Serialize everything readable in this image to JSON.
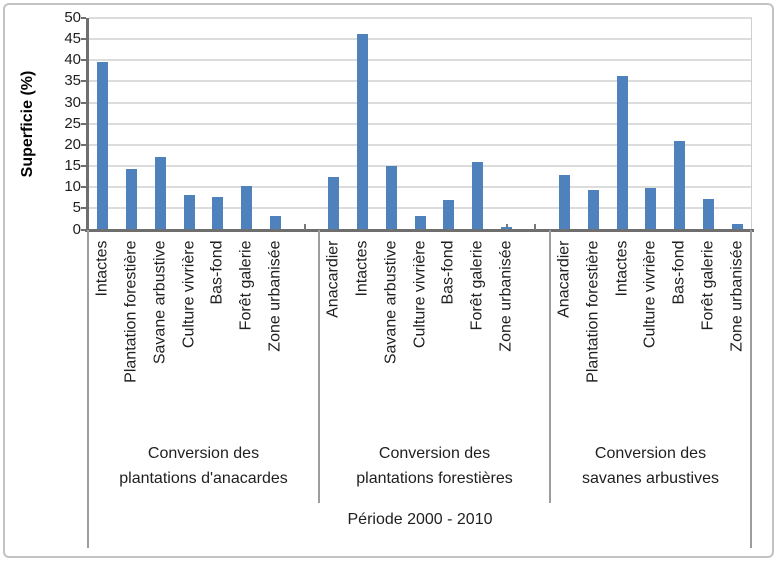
{
  "chart_data": {
    "type": "bar",
    "title": "",
    "ylabel": "Superficie (%)",
    "xlabel": "Période 2000 - 2010",
    "ylim": [
      0,
      50
    ],
    "yticks": [
      0,
      5,
      10,
      15,
      20,
      25,
      30,
      35,
      40,
      45,
      50
    ],
    "grid": true,
    "legend": false,
    "bar_color": "#4F81BD",
    "groups": [
      {
        "label": "Conversion des plantations d'anacardes",
        "label_line1": "Conversion des",
        "label_line2": "plantations d'anacardes",
        "categories": [
          "Intactes",
          "Plantation forestière",
          "Savane arbustive",
          "Culture vivrière",
          "Bas-fond",
          "Forêt galerie",
          "Zone urbanisée"
        ],
        "values": [
          39.6,
          14.3,
          17.2,
          8.1,
          7.6,
          10.2,
          3.1
        ]
      },
      {
        "label": "Conversion des plantations forestières",
        "label_line1": "Conversion des",
        "label_line2": "plantations forestières",
        "categories": [
          "Anacardier",
          "Intactes",
          "Savane arbustive",
          "Culture vivrière",
          "Bas-fond",
          "Forêt galerie",
          "Zone urbanisée"
        ],
        "values": [
          12.4,
          46.3,
          15.1,
          3.3,
          6.9,
          15.9,
          0.6
        ]
      },
      {
        "label": "Conversion des savanes arbustives",
        "label_line1": "Conversion des",
        "label_line2": "savanes arbustives",
        "categories": [
          "Anacardier",
          "Plantation forestière",
          "Intactes",
          "Culture vivrière",
          "Bas-fond",
          "Forêt galerie",
          "Zone urbanisée"
        ],
        "values": [
          12.8,
          9.3,
          36.2,
          9.7,
          20.9,
          7.2,
          1.4
        ]
      }
    ]
  }
}
